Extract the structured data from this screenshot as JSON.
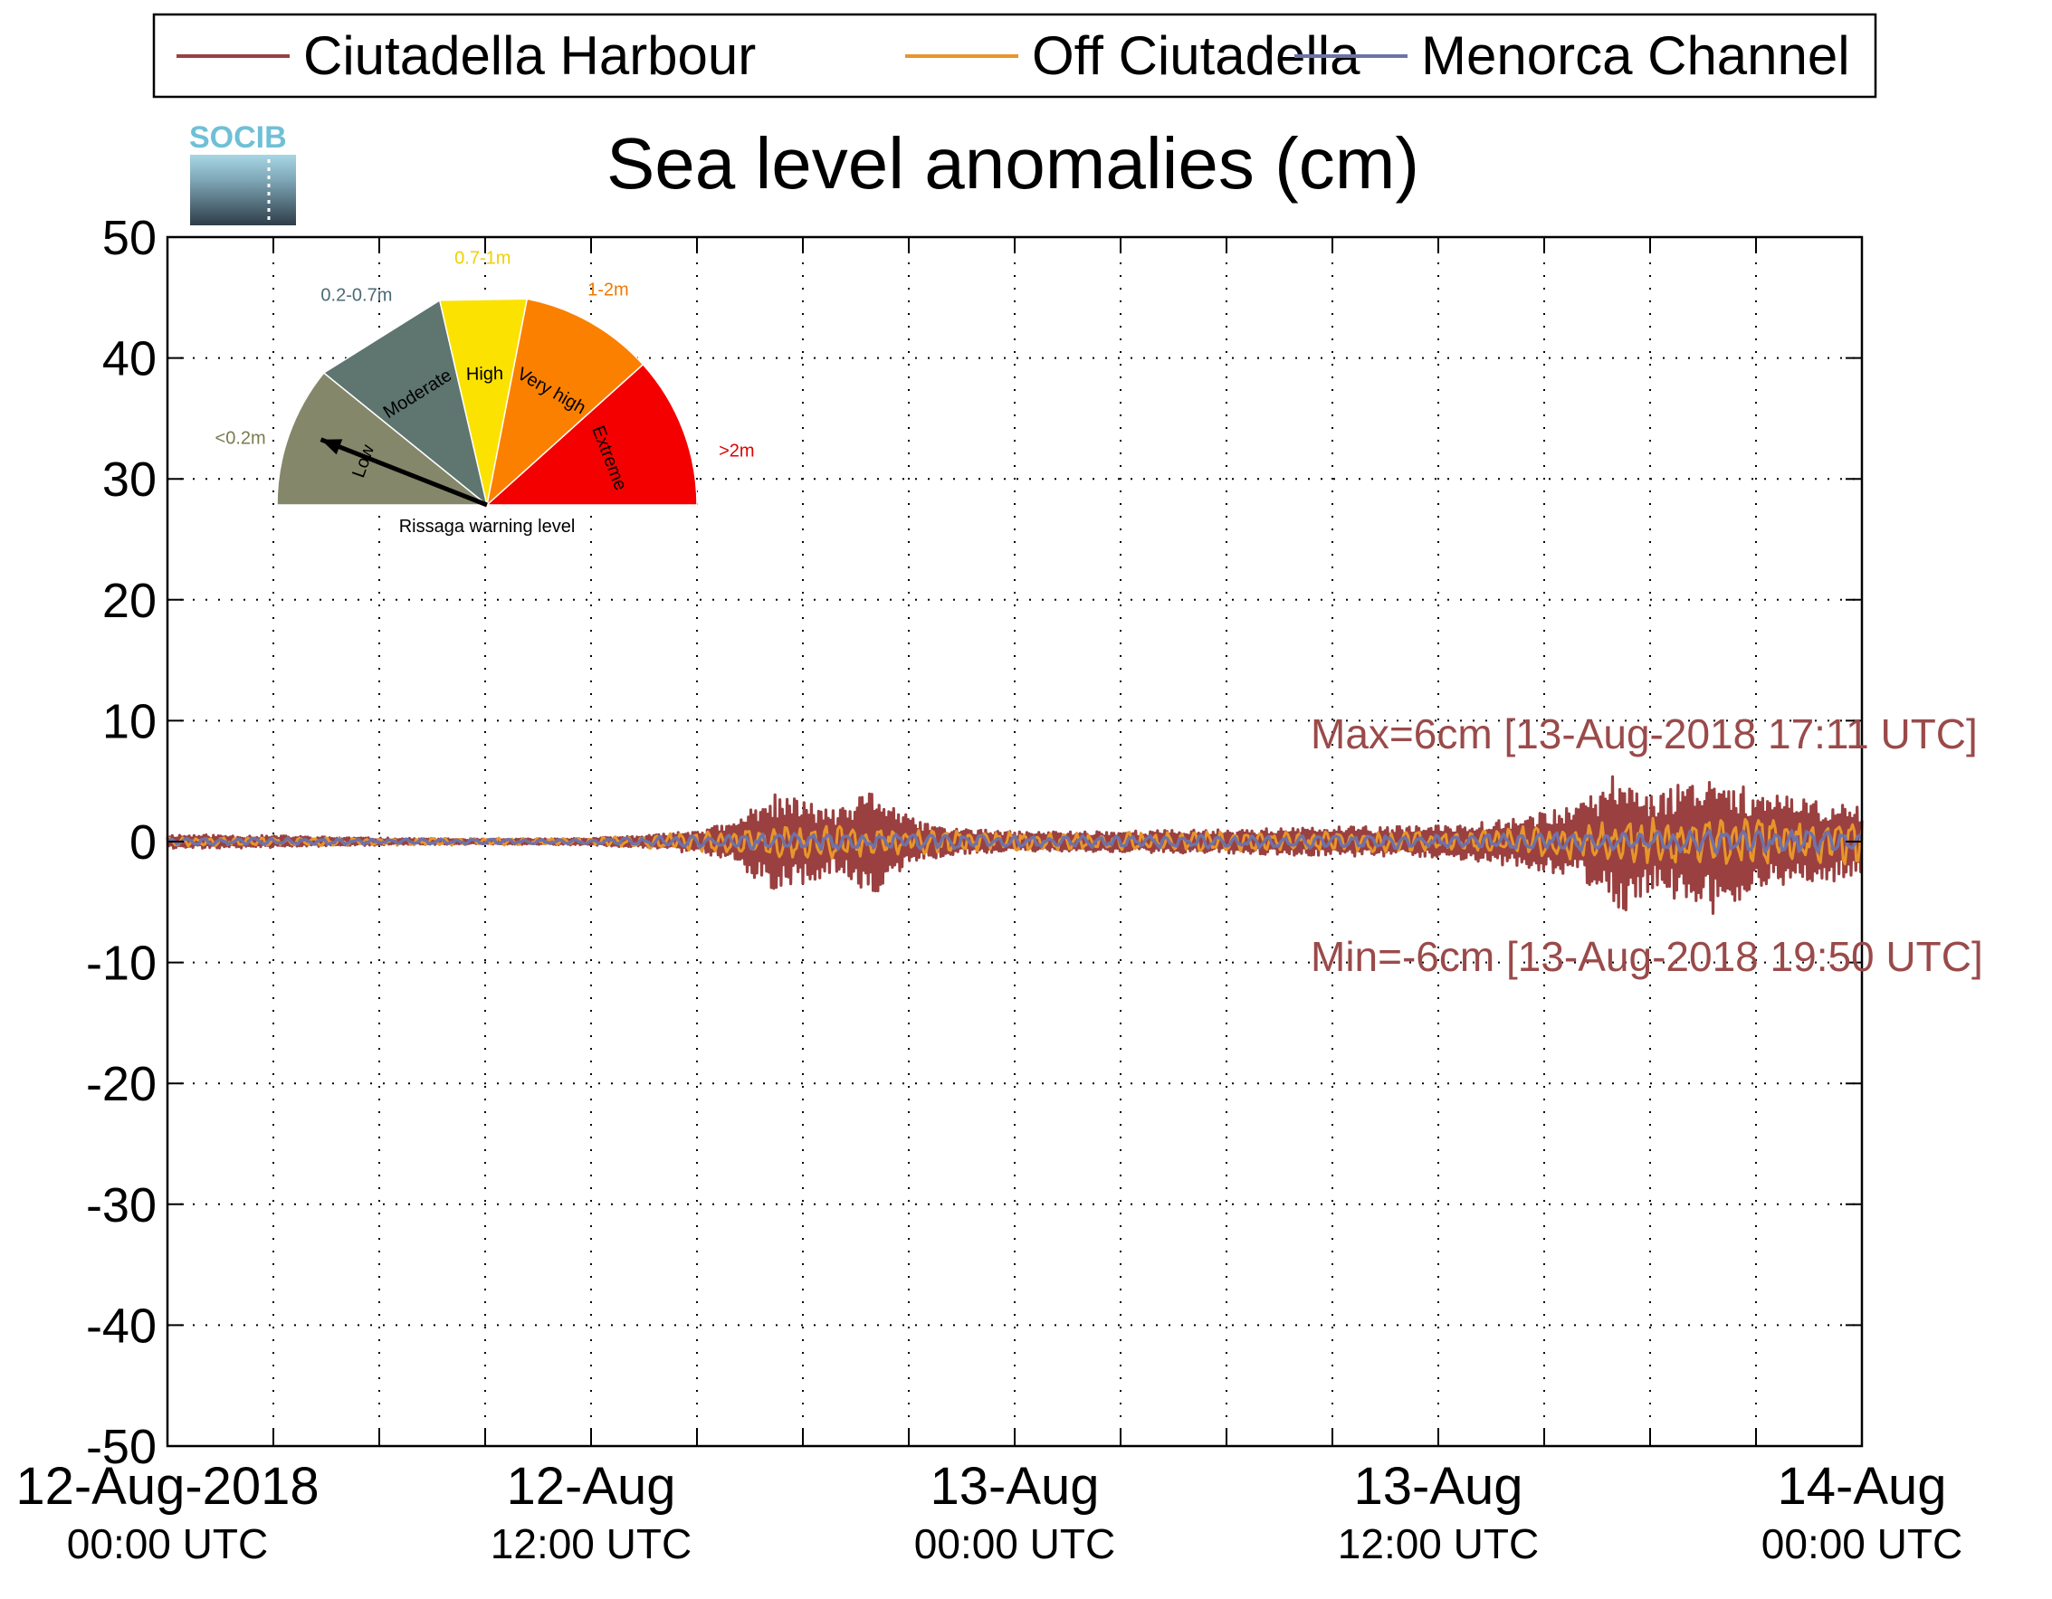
{
  "chart_data": {
    "type": "line",
    "title": "Sea level anomalies (cm)",
    "ylim": [
      -50,
      50
    ],
    "yticks": [
      50,
      40,
      30,
      20,
      10,
      0,
      -10,
      -20,
      -30,
      -40,
      -50
    ],
    "xlim": [
      "2018-08-12 00:00",
      "2018-08-14 00:00"
    ],
    "xticks": [
      {
        "x": "2018-08-12 00:00",
        "label": "12-Aug-2018",
        "sublabel": "00:00 UTC"
      },
      {
        "x": "2018-08-12 12:00",
        "label": "12-Aug",
        "sublabel": "12:00 UTC"
      },
      {
        "x": "2018-08-13 00:00",
        "label": "13-Aug",
        "sublabel": "00:00 UTC"
      },
      {
        "x": "2018-08-13 12:00",
        "label": "13-Aug",
        "sublabel": "12:00 UTC"
      },
      {
        "x": "2018-08-14 00:00",
        "label": "14-Aug",
        "sublabel": "00:00 UTC"
      }
    ],
    "minor_xticks_hours": 3,
    "grid": true,
    "legend_position": "top",
    "series": [
      {
        "name": "Ciutadella Harbour",
        "color": "#9a4040",
        "x": [
          "2018-08-12 00:00",
          "2018-08-12 03:00",
          "2018-08-12 06:00",
          "2018-08-12 09:00",
          "2018-08-12 12:00",
          "2018-08-12 14:00",
          "2018-08-12 16:00",
          "2018-08-12 17:00",
          "2018-08-12 18:00",
          "2018-08-12 19:00",
          "2018-08-12 20:00",
          "2018-08-12 21:00",
          "2018-08-12 22:00",
          "2018-08-13 00:00",
          "2018-08-13 03:00",
          "2018-08-13 06:00",
          "2018-08-13 09:00",
          "2018-08-13 12:00",
          "2018-08-13 14:00",
          "2018-08-13 16:00",
          "2018-08-13 17:11",
          "2018-08-13 18:00",
          "2018-08-13 19:50",
          "2018-08-13 21:00",
          "2018-08-13 22:30",
          "2018-08-14 00:00"
        ],
        "amplitude_cm": [
          0.6,
          0.5,
          0.3,
          0.2,
          0.3,
          0.6,
          1.5,
          4.0,
          3.5,
          2.5,
          4.5,
          2.0,
          1.2,
          0.8,
          0.9,
          1.0,
          1.2,
          1.3,
          2.0,
          3.0,
          6.0,
          4.0,
          6.0,
          4.0,
          3.5,
          3.0
        ]
      },
      {
        "name": "Off Ciutadella",
        "color": "#e8962a",
        "x": [
          "2018-08-12 00:00",
          "2018-08-12 12:00",
          "2018-08-12 18:00",
          "2018-08-13 00:00",
          "2018-08-13 12:00",
          "2018-08-13 18:00",
          "2018-08-14 00:00"
        ],
        "amplitude_cm": [
          0.4,
          0.3,
          1.5,
          0.8,
          0.9,
          2.0,
          2.0
        ]
      },
      {
        "name": "Menorca Channel",
        "color": "#6f72a8",
        "x": [
          "2018-08-12 00:00",
          "2018-08-12 12:00",
          "2018-08-12 18:00",
          "2018-08-13 00:00",
          "2018-08-13 12:00",
          "2018-08-13 18:00",
          "2018-08-14 00:00"
        ],
        "amplitude_cm": [
          0.3,
          0.2,
          0.8,
          0.5,
          0.6,
          1.0,
          1.0
        ]
      }
    ],
    "annotations": [
      {
        "text": "Max=6cm [13-Aug-2018 17:11 UTC]",
        "value": 6,
        "time": "2018-08-13 17:11"
      },
      {
        "text": "Min=-6cm [13-Aug-2018 19:50 UTC]",
        "value": -6,
        "time": "2018-08-13 19:50"
      }
    ]
  },
  "logo": {
    "text": "SOCIB"
  },
  "gauge": {
    "caption": "Rissaga warning level",
    "needle_sector": "Low",
    "sectors": [
      {
        "name": "Low",
        "range": "<0.2m",
        "color": "#85876a",
        "range_color": "#7a7a50"
      },
      {
        "name": "Moderate",
        "range": "0.2-0.7m",
        "color": "#5e7570",
        "range_color": "#4a6a78"
      },
      {
        "name": "High",
        "range": "0.7-1m",
        "color": "#fbe200",
        "range_color": "#f0d000"
      },
      {
        "name": "Very high",
        "range": "1-2m",
        "color": "#fb8000",
        "range_color": "#f07800"
      },
      {
        "name": "Extreme",
        "range": ">2m",
        "color": "#f50000",
        "range_color": "#e00000"
      }
    ]
  }
}
